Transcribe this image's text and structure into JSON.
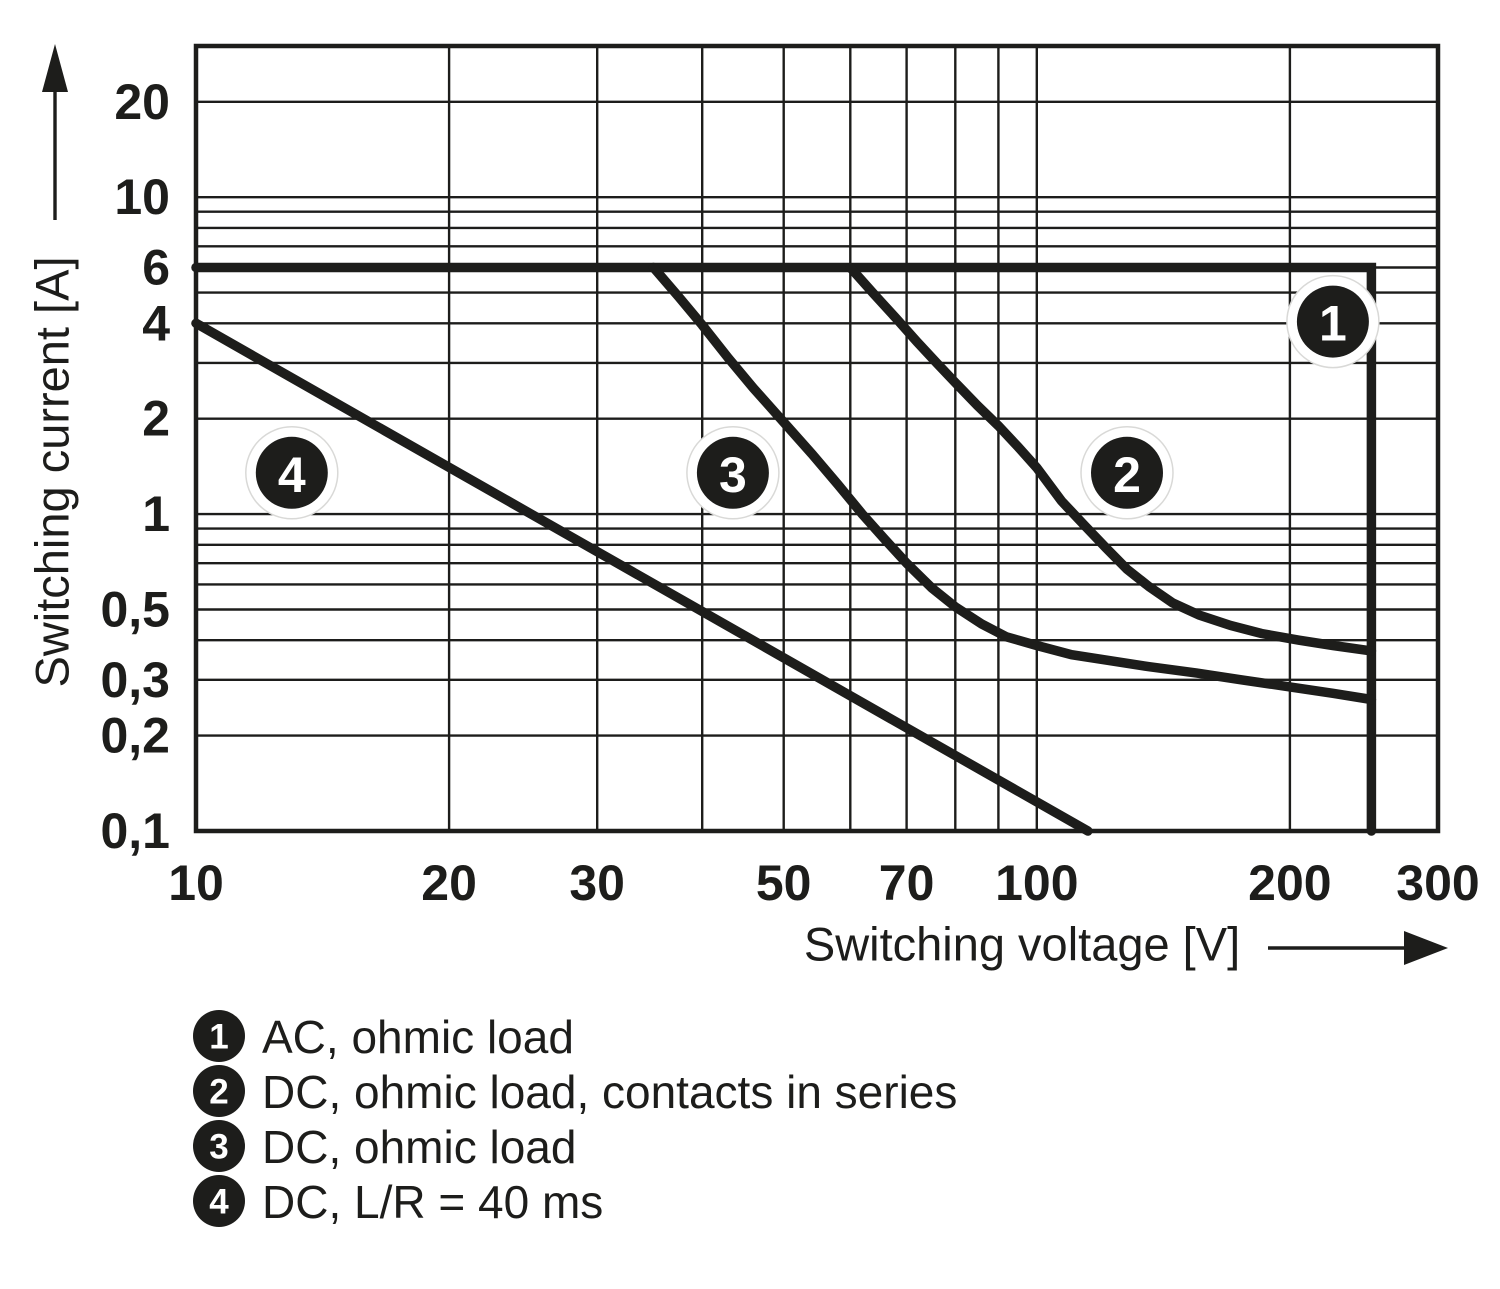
{
  "page": {
    "background": "#ffffff",
    "ink_color": "#1d1d1b",
    "marker_halo_color": "#d9d9d7"
  },
  "chart_data": {
    "type": "line",
    "title": "",
    "xlabel": "Switching voltage [V]",
    "ylabel": "Switching current [A]",
    "x_scale": "log",
    "y_scale": "log",
    "xlim": [
      10,
      300
    ],
    "ylim": [
      0.1,
      30
    ],
    "grid": "on",
    "legend_position": "below-left",
    "x_ticks": [
      {
        "v": 10,
        "label": "10"
      },
      {
        "v": 20,
        "label": "20"
      },
      {
        "v": 30,
        "label": "30"
      },
      {
        "v": 50,
        "label": "50"
      },
      {
        "v": 70,
        "label": "70"
      },
      {
        "v": 100,
        "label": "100"
      },
      {
        "v": 200,
        "label": "200"
      },
      {
        "v": 300,
        "label": "300"
      }
    ],
    "y_ticks": [
      {
        "v": 20,
        "label": "20"
      },
      {
        "v": 10,
        "label": "10"
      },
      {
        "v": 6,
        "label": "6"
      },
      {
        "v": 4,
        "label": "4"
      },
      {
        "v": 2,
        "label": "2"
      },
      {
        "v": 1,
        "label": "1"
      },
      {
        "v": 0.5,
        "label": "0,5"
      },
      {
        "v": 0.3,
        "label": "0,3"
      },
      {
        "v": 0.2,
        "label": "0,2"
      },
      {
        "v": 0.1,
        "label": "0,1"
      }
    ],
    "x_gridlines": [
      20,
      30,
      40,
      50,
      60,
      70,
      80,
      90,
      100,
      200
    ],
    "y_gridlines": [
      0.2,
      0.3,
      0.4,
      0.5,
      0.6,
      0.7,
      0.8,
      0.9,
      1,
      2,
      3,
      4,
      5,
      6,
      7,
      8,
      9,
      10,
      20
    ],
    "series": [
      {
        "number": "1",
        "name": "AC, ohmic load",
        "points": [
          [
            10,
            6
          ],
          [
            250,
            6
          ],
          [
            250,
            0.1
          ]
        ]
      },
      {
        "number": "2",
        "name": "DC, ohmic load, contacts in series",
        "points": [
          [
            60,
            6
          ],
          [
            64,
            4.95
          ],
          [
            68,
            4.15
          ],
          [
            72,
            3.5
          ],
          [
            76,
            3.0
          ],
          [
            80,
            2.6
          ],
          [
            85,
            2.2
          ],
          [
            90,
            1.9
          ],
          [
            95,
            1.63
          ],
          [
            100,
            1.4
          ],
          [
            107,
            1.1
          ],
          [
            114,
            0.92
          ],
          [
            121,
            0.78
          ],
          [
            128,
            0.67
          ],
          [
            136,
            0.59
          ],
          [
            145,
            0.525
          ],
          [
            156,
            0.48
          ],
          [
            170,
            0.445
          ],
          [
            185,
            0.42
          ],
          [
            205,
            0.4
          ],
          [
            225,
            0.385
          ],
          [
            250,
            0.37
          ]
        ]
      },
      {
        "number": "3",
        "name": "DC, ohmic load",
        "points": [
          [
            35,
            6
          ],
          [
            37.5,
            4.85
          ],
          [
            40,
            3.95
          ],
          [
            43,
            3.1
          ],
          [
            46,
            2.5
          ],
          [
            50,
            1.95
          ],
          [
            54,
            1.55
          ],
          [
            58,
            1.24
          ],
          [
            62,
            1.0
          ],
          [
            66,
            0.83
          ],
          [
            70,
            0.7
          ],
          [
            75,
            0.585
          ],
          [
            80,
            0.51
          ],
          [
            86,
            0.45
          ],
          [
            92,
            0.41
          ],
          [
            100,
            0.385
          ],
          [
            110,
            0.36
          ],
          [
            122,
            0.345
          ],
          [
            136,
            0.33
          ],
          [
            155,
            0.315
          ],
          [
            175,
            0.3
          ],
          [
            200,
            0.285
          ],
          [
            225,
            0.272
          ],
          [
            250,
            0.26
          ]
        ]
      },
      {
        "number": "4",
        "name": "DC, L/R = 40 ms",
        "points": [
          [
            10,
            4
          ],
          [
            115,
            0.1
          ]
        ]
      }
    ],
    "markers": [
      {
        "number": "1",
        "x": 225,
        "y": 4.05
      },
      {
        "number": "2",
        "x": 128,
        "y": 1.35
      },
      {
        "number": "3",
        "x": 43.5,
        "y": 1.35
      },
      {
        "number": "4",
        "x": 13,
        "y": 1.35
      }
    ]
  },
  "legend": {
    "items": [
      {
        "number": "1",
        "label": "AC, ohmic load"
      },
      {
        "number": "2",
        "label": "DC, ohmic load, contacts in series"
      },
      {
        "number": "3",
        "label": "DC, ohmic load"
      },
      {
        "number": "4",
        "label": "DC, L/R = 40 ms"
      }
    ]
  }
}
